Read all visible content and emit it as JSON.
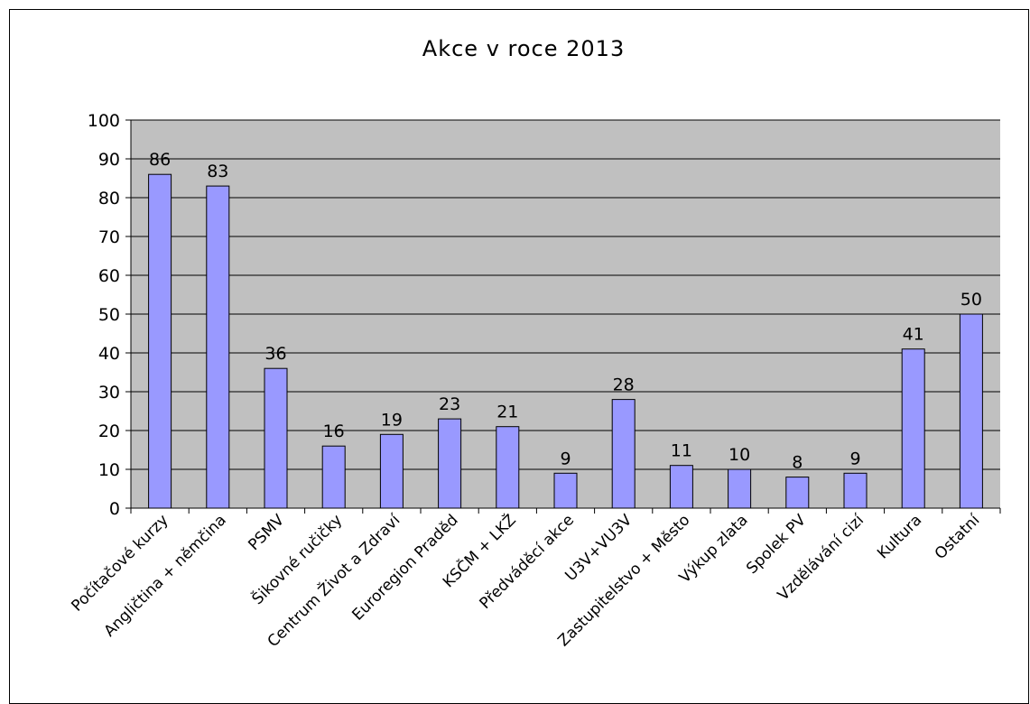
{
  "chart_data": {
    "type": "bar",
    "title": "Akce v roce 2013",
    "xlabel": "",
    "ylabel": "",
    "ylim": [
      0,
      100
    ],
    "yticks": [
      0,
      10,
      20,
      30,
      40,
      50,
      60,
      70,
      80,
      90,
      100
    ],
    "grid": true,
    "legend": "none",
    "categories": [
      "Počítačové kurzy",
      "Angličtina + němčina",
      "PSMV",
      "Šikovné ručičky",
      "Centrum Život a Zdraví",
      "Euroregion Praděd",
      "KSČM + LKŽ",
      "Předváděcí akce",
      "U3V+VU3V",
      "Zastupitelstvo + Město",
      "Výkup zlata",
      "Spolek PV",
      "Vzdělávání cizí",
      "Kultura",
      "Ostatní"
    ],
    "values": [
      86,
      83,
      36,
      16,
      19,
      23,
      21,
      9,
      28,
      11,
      10,
      8,
      9,
      41,
      50
    ],
    "colors": {
      "bar_fill": "#9999ff",
      "bar_stroke": "#000000",
      "plot_bg": "#c0c0c0",
      "grid": "#000000",
      "text": "#000000"
    }
  }
}
